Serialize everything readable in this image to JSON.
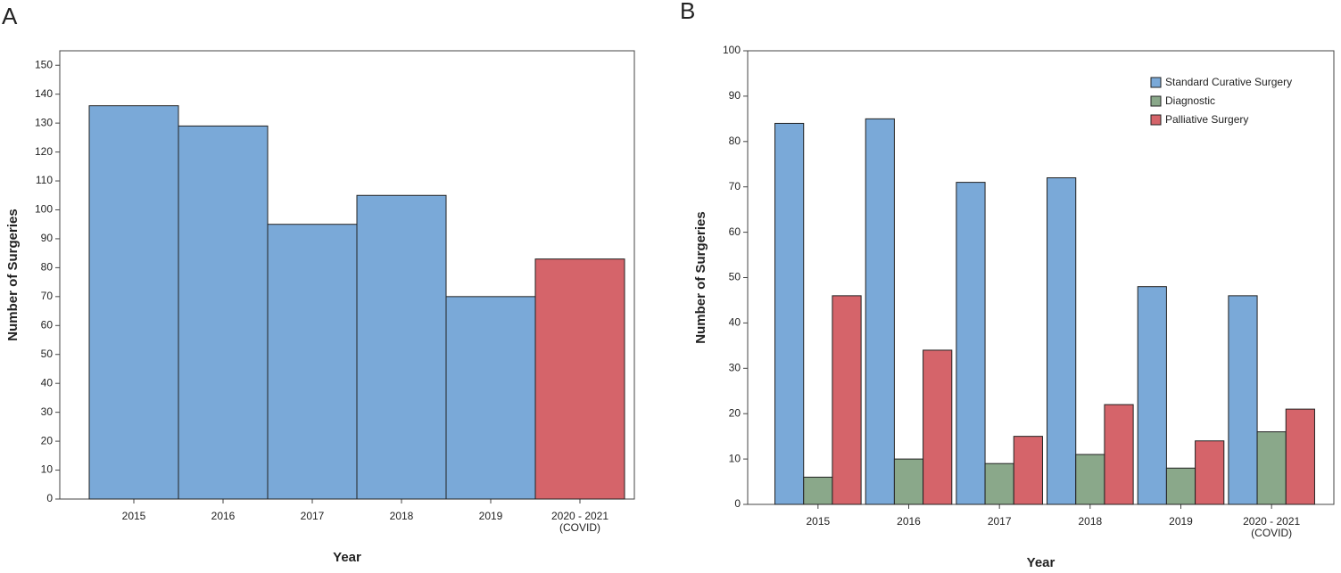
{
  "chart_data": [
    {
      "type": "bar",
      "panel": "A",
      "x_label": "Year",
      "y_label": "Number of Surgeries",
      "categories": [
        "2015",
        "2016",
        "2017",
        "2018",
        "2019",
        "2020 - 2021\n(COVID)"
      ],
      "values": [
        136,
        129,
        95,
        105,
        70,
        83
      ],
      "colors": [
        "#7aa9d8",
        "#7aa9d8",
        "#7aa9d8",
        "#7aa9d8",
        "#7aa9d8",
        "#d5646a"
      ],
      "ylim": [
        0,
        155
      ],
      "yticks": [
        0,
        10,
        20,
        30,
        40,
        50,
        60,
        70,
        80,
        90,
        100,
        110,
        120,
        130,
        140,
        150
      ]
    },
    {
      "type": "grouped_bar",
      "panel": "B",
      "x_label": "Year",
      "y_label": "Number of Surgeries",
      "categories": [
        "2015",
        "2016",
        "2017",
        "2018",
        "2019",
        "2020 - 2021\n(COVID)"
      ],
      "series": [
        {
          "name": "Standard Curative Surgery",
          "color": "#7aa9d8",
          "values": [
            84,
            85,
            71,
            72,
            48,
            46
          ]
        },
        {
          "name": "Diagnostic",
          "color": "#8aa88a",
          "values": [
            6,
            10,
            9,
            11,
            8,
            16
          ]
        },
        {
          "name": "Palliative Surgery",
          "color": "#d5646a",
          "values": [
            46,
            34,
            15,
            22,
            14,
            21
          ]
        }
      ],
      "ylim": [
        0,
        100
      ],
      "yticks": [
        0,
        10,
        20,
        30,
        40,
        50,
        60,
        70,
        80,
        90,
        100
      ],
      "legend": "top-right"
    }
  ]
}
